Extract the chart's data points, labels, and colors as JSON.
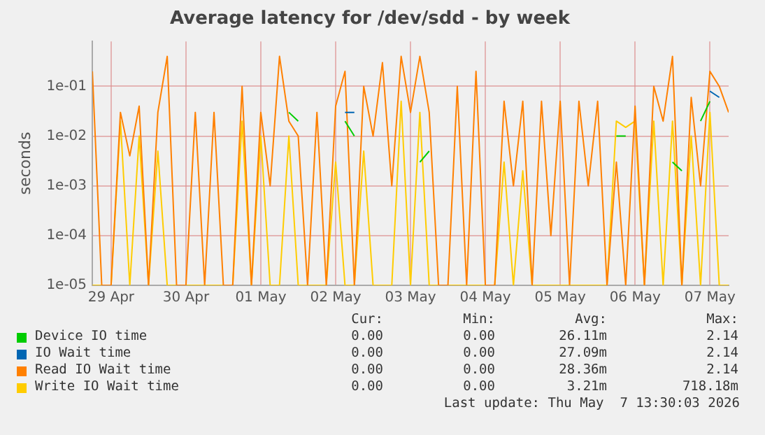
{
  "chart_data": {
    "type": "line",
    "title": "Average latency for /dev/sdd - by week",
    "ylabel": "seconds",
    "x": [
      "2026-04-28T18:00",
      "2026-04-28T21:00",
      "2026-04-29T00:00",
      "2026-04-29T03:00",
      "2026-04-29T06:00",
      "2026-04-29T09:00",
      "2026-04-29T12:00",
      "2026-04-29T15:00",
      "2026-04-29T18:00",
      "2026-04-29T21:00",
      "2026-04-30T00:00",
      "2026-04-30T03:00",
      "2026-04-30T06:00",
      "2026-04-30T09:00",
      "2026-04-30T12:00",
      "2026-04-30T15:00",
      "2026-04-30T18:00",
      "2026-04-30T21:00",
      "2026-05-01T00:00",
      "2026-05-01T03:00",
      "2026-05-01T06:00",
      "2026-05-01T09:00",
      "2026-05-01T12:00",
      "2026-05-01T15:00",
      "2026-05-01T18:00",
      "2026-05-01T21:00",
      "2026-05-02T00:00",
      "2026-05-02T03:00",
      "2026-05-02T06:00",
      "2026-05-02T09:00",
      "2026-05-02T12:00",
      "2026-05-02T15:00",
      "2026-05-02T18:00",
      "2026-05-02T21:00",
      "2026-05-03T00:00",
      "2026-05-03T03:00",
      "2026-05-03T06:00",
      "2026-05-03T09:00",
      "2026-05-03T12:00",
      "2026-05-03T15:00",
      "2026-05-03T18:00",
      "2026-05-03T21:00",
      "2026-05-04T00:00",
      "2026-05-04T03:00",
      "2026-05-04T06:00",
      "2026-05-04T09:00",
      "2026-05-04T12:00",
      "2026-05-04T15:00",
      "2026-05-04T18:00",
      "2026-05-04T21:00",
      "2026-05-05T00:00",
      "2026-05-05T03:00",
      "2026-05-05T06:00",
      "2026-05-05T09:00",
      "2026-05-05T12:00",
      "2026-05-05T15:00",
      "2026-05-05T18:00",
      "2026-05-05T21:00",
      "2026-05-06T00:00",
      "2026-05-06T03:00",
      "2026-05-06T06:00",
      "2026-05-06T09:00",
      "2026-05-06T12:00",
      "2026-05-06T15:00",
      "2026-05-06T18:00",
      "2026-05-06T21:00",
      "2026-05-07T00:00",
      "2026-05-07T03:00",
      "2026-05-07T06:00"
    ],
    "series": [
      {
        "name": "Device IO time",
        "color": "#00cc00",
        "values": [
          null,
          null,
          null,
          null,
          null,
          null,
          null,
          null,
          null,
          null,
          null,
          null,
          null,
          null,
          null,
          null,
          null,
          null,
          null,
          null,
          null,
          0.03,
          0.02,
          null,
          null,
          null,
          null,
          0.02,
          0.01,
          null,
          null,
          null,
          null,
          null,
          null,
          0.003,
          0.005,
          null,
          null,
          null,
          null,
          null,
          null,
          null,
          null,
          null,
          null,
          null,
          null,
          null,
          null,
          null,
          null,
          null,
          null,
          null,
          0.01,
          0.01,
          null,
          null,
          null,
          null,
          0.003,
          0.002,
          null,
          0.02,
          0.05,
          null,
          null
        ]
      },
      {
        "name": "IO Wait time",
        "color": "#0066b3",
        "values": [
          null,
          null,
          null,
          null,
          null,
          null,
          null,
          null,
          null,
          null,
          null,
          null,
          null,
          null,
          null,
          null,
          null,
          null,
          null,
          null,
          null,
          null,
          null,
          null,
          null,
          null,
          null,
          0.03,
          0.03,
          null,
          null,
          null,
          null,
          null,
          null,
          null,
          null,
          null,
          null,
          null,
          null,
          null,
          null,
          null,
          null,
          null,
          null,
          null,
          null,
          null,
          null,
          null,
          null,
          null,
          null,
          null,
          null,
          null,
          null,
          null,
          null,
          null,
          null,
          null,
          null,
          null,
          0.08,
          0.06,
          null
        ]
      },
      {
        "name": "Read IO Wait time",
        "color": "#ff8000",
        "values": [
          0.2,
          1e-05,
          1e-05,
          0.03,
          0.004,
          0.04,
          1e-05,
          0.03,
          0.4,
          1e-05,
          1e-05,
          0.03,
          1e-05,
          0.03,
          1e-05,
          1e-05,
          0.1,
          1e-05,
          0.03,
          0.001,
          0.4,
          0.02,
          0.01,
          1e-05,
          0.03,
          1e-05,
          0.04,
          0.2,
          1e-05,
          0.1,
          0.01,
          0.3,
          0.001,
          0.4,
          0.03,
          0.4,
          0.03,
          1e-05,
          1e-05,
          0.1,
          1e-05,
          0.2,
          1e-05,
          1e-05,
          0.05,
          0.001,
          0.05,
          1e-05,
          0.05,
          0.0001,
          0.05,
          1e-05,
          0.05,
          0.001,
          0.05,
          1e-05,
          0.003,
          1e-05,
          0.04,
          1e-05,
          0.1,
          0.02,
          0.4,
          1e-05,
          0.06,
          0.001,
          0.2,
          0.1,
          0.03
        ]
      },
      {
        "name": "Write IO Wait time",
        "color": "#ffcc00",
        "values": [
          1e-05,
          1e-05,
          1e-05,
          0.02,
          1e-05,
          0.01,
          1e-05,
          0.005,
          1e-05,
          1e-05,
          1e-05,
          1e-05,
          1e-05,
          1e-05,
          1e-05,
          1e-05,
          0.02,
          1e-05,
          0.01,
          1e-05,
          1e-05,
          0.01,
          1e-05,
          1e-05,
          1e-05,
          1e-05,
          0.003,
          1e-05,
          1e-05,
          0.005,
          1e-05,
          1e-05,
          1e-05,
          0.05,
          1e-05,
          0.03,
          1e-05,
          1e-05,
          1e-05,
          1e-05,
          1e-05,
          1e-05,
          1e-05,
          1e-05,
          0.003,
          1e-05,
          0.002,
          1e-05,
          1e-05,
          1e-05,
          1e-05,
          1e-05,
          1e-05,
          1e-05,
          1e-05,
          1e-05,
          0.02,
          0.015,
          0.02,
          1e-05,
          0.02,
          1e-05,
          0.02,
          1e-05,
          0.01,
          1e-05,
          0.03,
          1e-05,
          1e-05
        ]
      }
    ],
    "log": "y",
    "xlim": [
      "2026-04-28T18:00",
      "2026-05-07T06:00"
    ],
    "xticks": [
      {
        "value": "2026-04-29T00:00",
        "label": "29 Apr"
      },
      {
        "value": "2026-04-30T00:00",
        "label": "30 Apr"
      },
      {
        "value": "2026-05-01T00:00",
        "label": "01 May"
      },
      {
        "value": "2026-05-02T00:00",
        "label": "02 May"
      },
      {
        "value": "2026-05-03T00:00",
        "label": "03 May"
      },
      {
        "value": "2026-05-04T00:00",
        "label": "04 May"
      },
      {
        "value": "2026-05-05T00:00",
        "label": "05 May"
      },
      {
        "value": "2026-05-06T00:00",
        "label": "06 May"
      },
      {
        "value": "2026-05-07T00:00",
        "label": "07 May"
      }
    ],
    "ylim": [
      1e-05,
      0.8
    ],
    "yticks": [
      {
        "value": 1e-05,
        "label": "1e-05"
      },
      {
        "value": 0.0001,
        "label": "1e-04"
      },
      {
        "value": 0.001,
        "label": "1e-03"
      },
      {
        "value": 0.01,
        "label": "1e-02"
      },
      {
        "value": 0.1,
        "label": "1e-01"
      }
    ],
    "grid": true,
    "legend": "bottom",
    "annotations": [
      "Cur:",
      "Min:",
      "Avg:",
      "Max:",
      "0.00",
      "0.00",
      "26.11m",
      "2.14",
      "0.00",
      "0.00",
      "27.09m",
      "2.14",
      "0.00",
      "0.00",
      "28.36m",
      "2.14",
      "0.00",
      "0.00",
      "3.21m",
      "718.18m",
      "Last update: Thu May  7 13:30:03 2026"
    ]
  }
}
